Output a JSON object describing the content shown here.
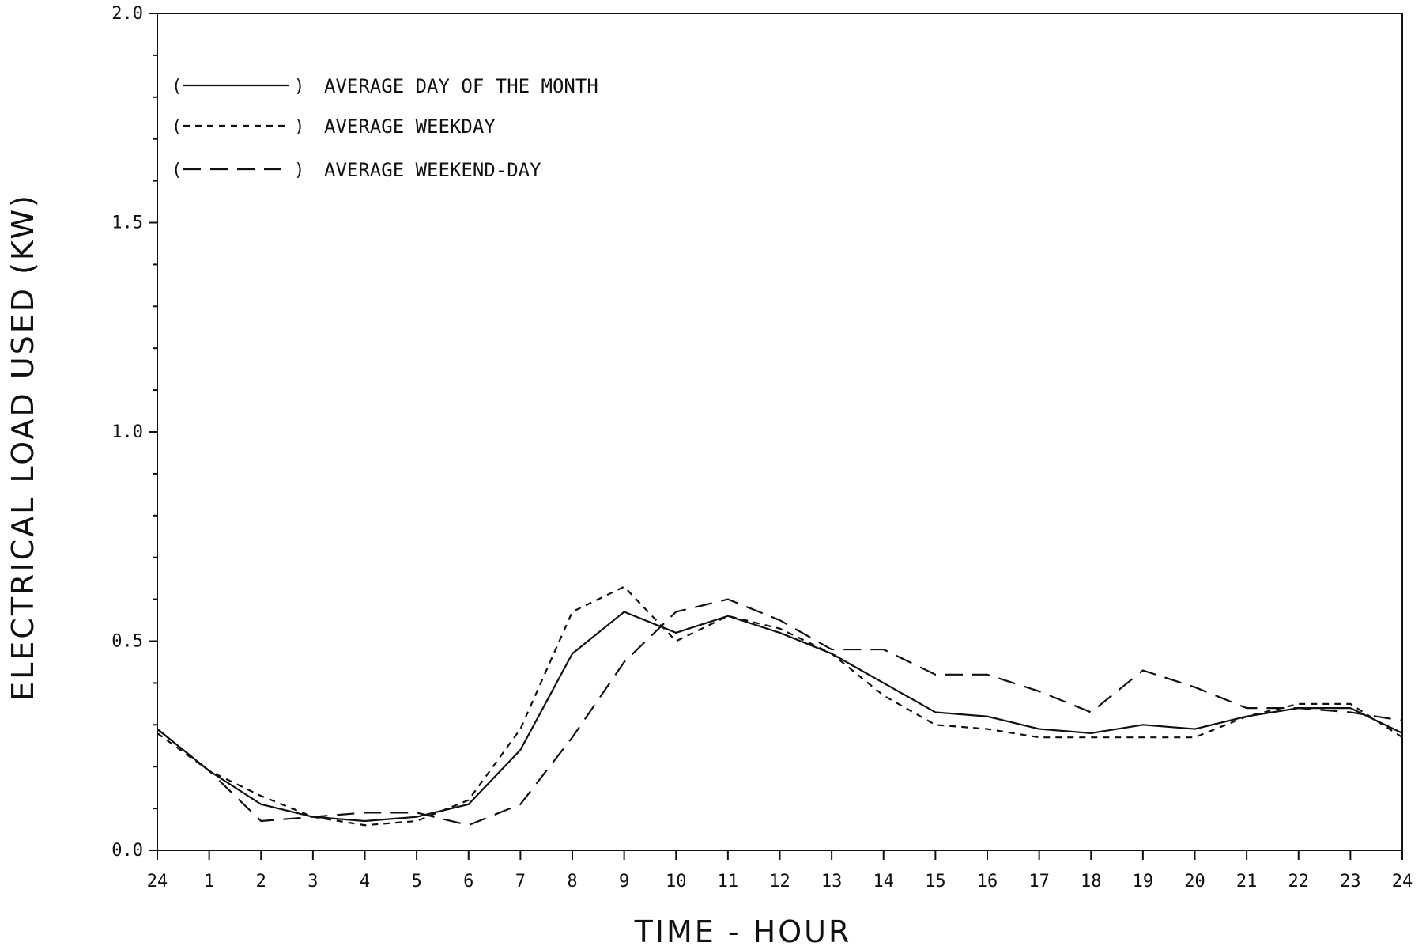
{
  "chart_data": {
    "type": "line",
    "title": "",
    "xlabel": "TIME - HOUR",
    "ylabel": "ELECTRICAL LOAD USED (KW)",
    "x_tick_labels": [
      "24",
      "1",
      "2",
      "3",
      "4",
      "5",
      "6",
      "7",
      "8",
      "9",
      "10",
      "11",
      "12",
      "13",
      "14",
      "15",
      "16",
      "17",
      "18",
      "19",
      "20",
      "21",
      "22",
      "23",
      "24"
    ],
    "y_ticks": [
      0.0,
      0.5,
      1.0,
      1.5,
      2.0
    ],
    "y_tick_labels": [
      "0.0",
      "0.5",
      "1.0",
      "1.5",
      "2.0"
    ],
    "ylim": [
      0,
      2.0
    ],
    "grid": false,
    "legend_position": "top-left",
    "series": [
      {
        "name": "AVERAGE DAY OF THE MONTH",
        "style": "solid",
        "values": [
          0.29,
          0.19,
          0.11,
          0.08,
          0.07,
          0.08,
          0.11,
          0.24,
          0.47,
          0.57,
          0.52,
          0.56,
          0.52,
          0.47,
          0.4,
          0.33,
          0.32,
          0.29,
          0.28,
          0.3,
          0.29,
          0.32,
          0.34,
          0.34,
          0.28
        ]
      },
      {
        "name": "AVERAGE WEEKDAY",
        "style": "dotted",
        "values": [
          0.28,
          0.19,
          0.13,
          0.08,
          0.06,
          0.07,
          0.12,
          0.29,
          0.57,
          0.63,
          0.5,
          0.56,
          0.53,
          0.47,
          0.37,
          0.3,
          0.29,
          0.27,
          0.27,
          0.27,
          0.27,
          0.32,
          0.35,
          0.35,
          0.27
        ]
      },
      {
        "name": "AVERAGE WEEKEND-DAY",
        "style": "dashed",
        "values": [
          0.29,
          0.19,
          0.07,
          0.08,
          0.09,
          0.09,
          0.06,
          0.11,
          0.27,
          0.45,
          0.57,
          0.6,
          0.55,
          0.48,
          0.48,
          0.42,
          0.42,
          0.38,
          0.33,
          0.43,
          0.39,
          0.34,
          0.34,
          0.33,
          0.31
        ]
      }
    ]
  }
}
